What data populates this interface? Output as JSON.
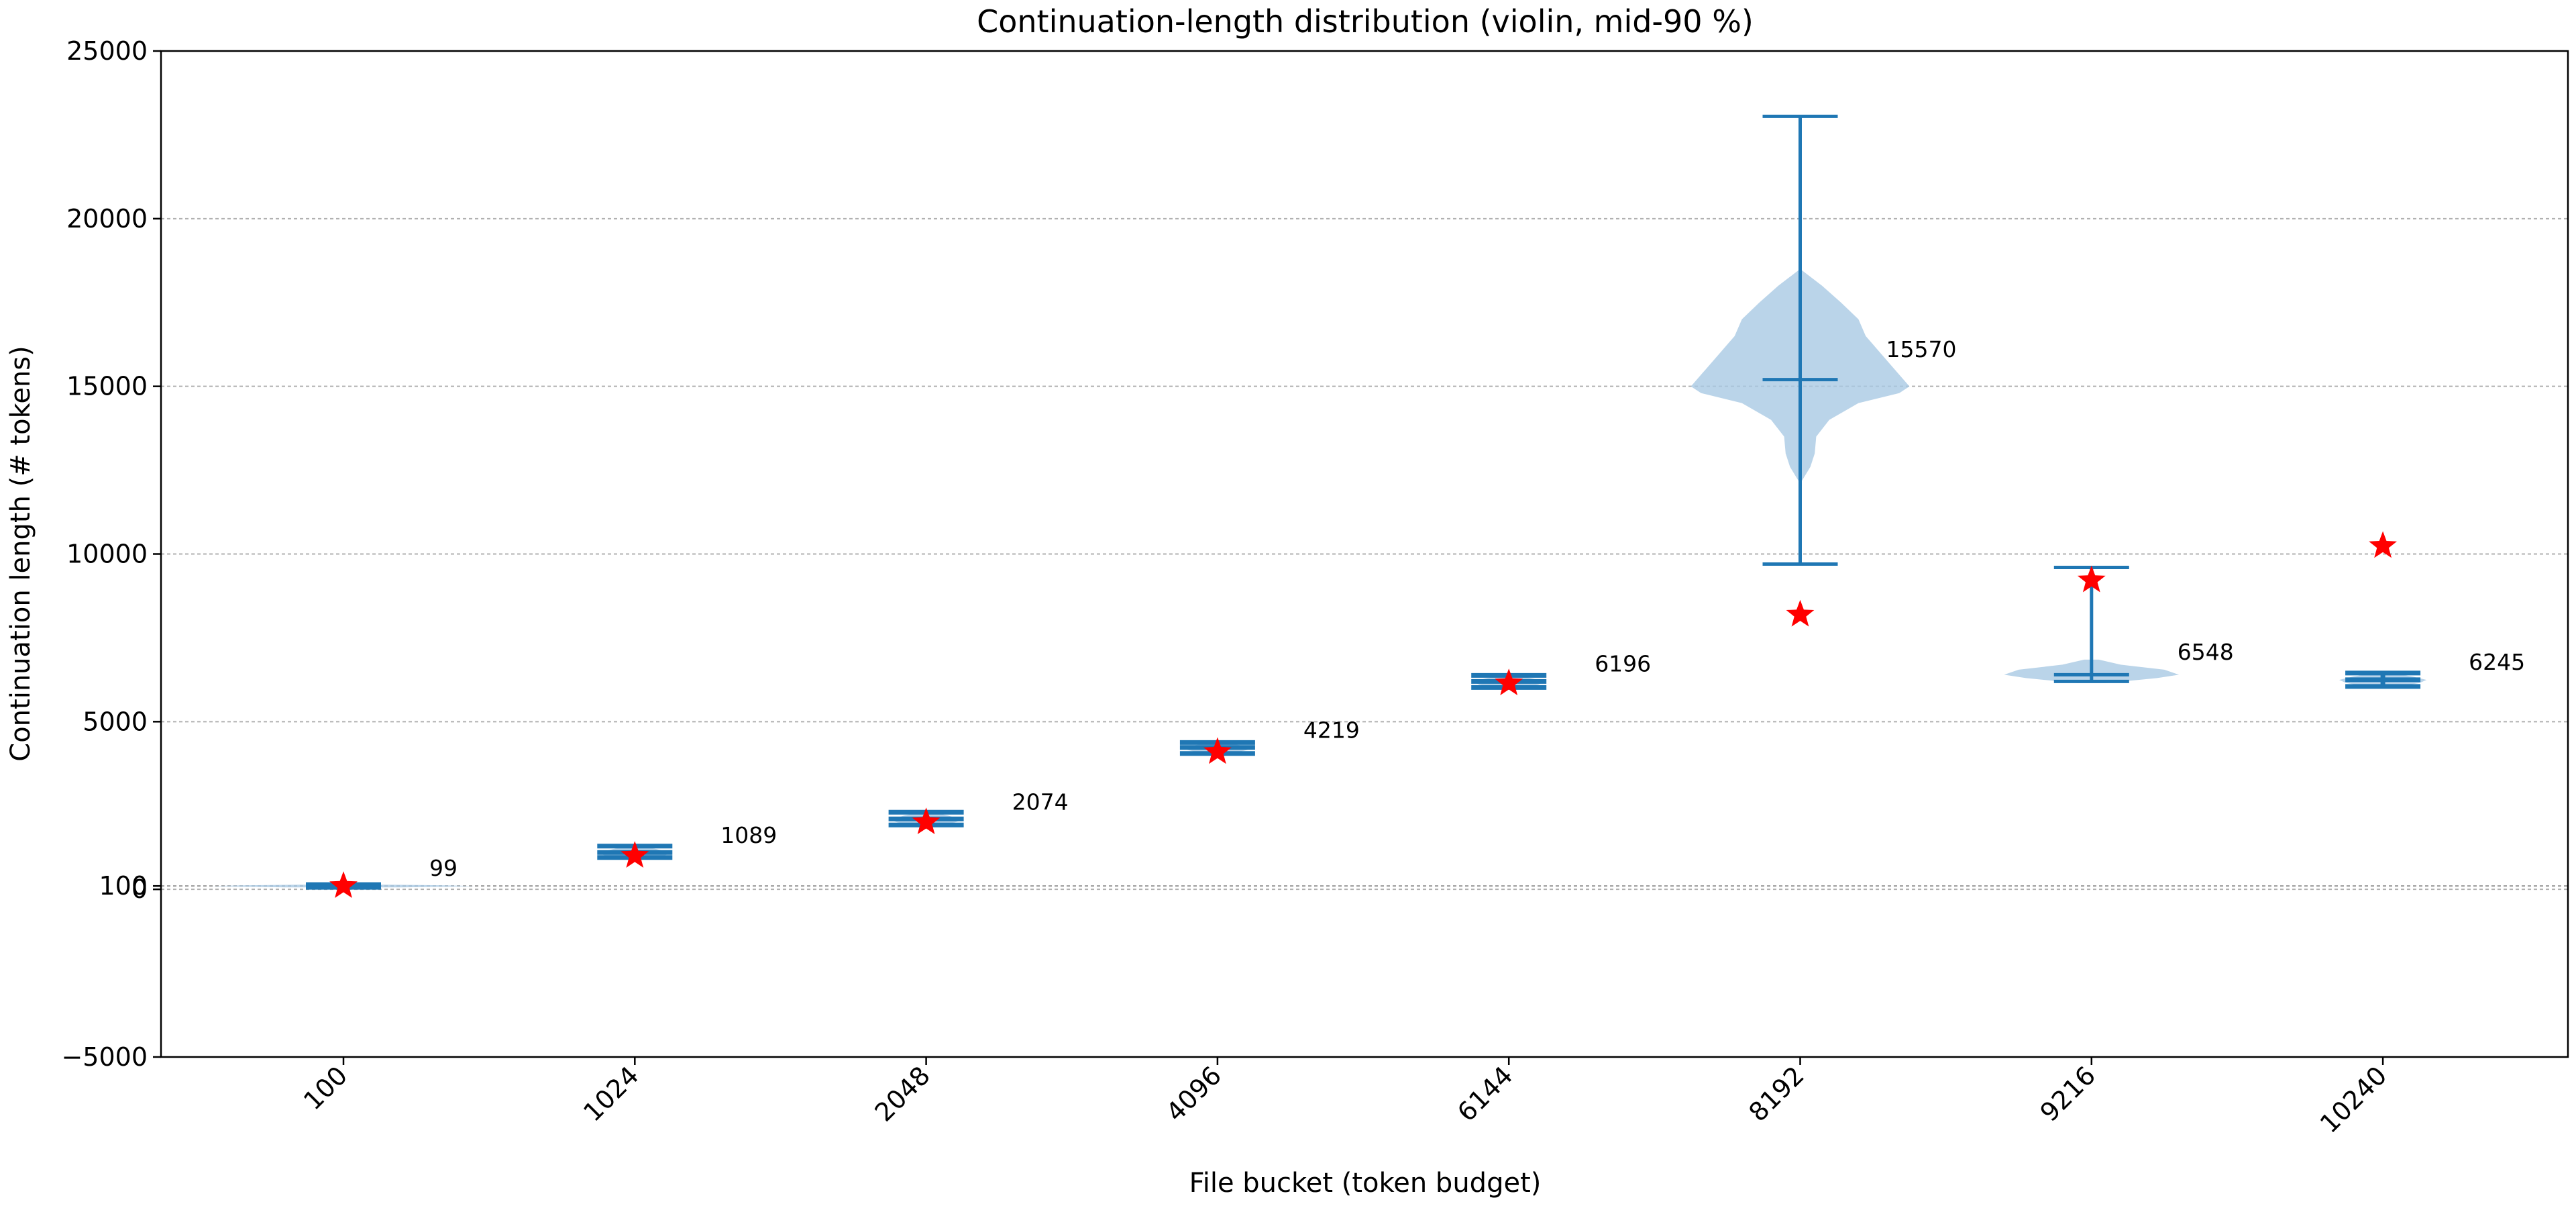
{
  "chart_data": {
    "type": "violin",
    "title": "Continuation-length distribution (violin, mid-90 %)",
    "xlabel": "File bucket (token budget)",
    "ylabel": "Continuation length (# tokens)",
    "ylim": [
      -5000,
      25000
    ],
    "yticks": [
      -5000,
      0,
      5000,
      10000,
      15000,
      20000,
      25000
    ],
    "ytick_labels": [
      "−5000",
      "0",
      "5000",
      "10000",
      "15000",
      "20000",
      "25000"
    ],
    "extra_ytick": {
      "value": 100,
      "label": "100"
    },
    "reference_line": 100,
    "categories": [
      "100",
      "1024",
      "2048",
      "4096",
      "6144",
      "8192",
      "9216",
      "10240"
    ],
    "grid": "y-dashed",
    "colors": {
      "violin_fill": "#a9c9e3",
      "whisker": "#1f77b4",
      "star": "#ff0000"
    },
    "violins": [
      {
        "category": "100",
        "min": 60,
        "max": 140,
        "mean": 100,
        "median": 99,
        "star": 99,
        "shape": [
          [
            60,
            0.4
          ],
          [
            80,
            0.7
          ],
          [
            100,
            0.9
          ],
          [
            120,
            0.7
          ],
          [
            140,
            0.3
          ]
        ]
      },
      {
        "category": "1024",
        "min": 950,
        "max": 1290,
        "mean": 1100,
        "median": 1089,
        "star": 1000,
        "shape": [
          [
            950,
            0.1
          ],
          [
            1000,
            0.2
          ],
          [
            1089,
            0.25
          ],
          [
            1200,
            0.15
          ],
          [
            1290,
            0.05
          ]
        ]
      },
      {
        "category": "2048",
        "min": 1920,
        "max": 2300,
        "mean": 2100,
        "median": 2074,
        "star": 2000,
        "shape": [
          [
            1920,
            0.1
          ],
          [
            2000,
            0.2
          ],
          [
            2074,
            0.25
          ],
          [
            2200,
            0.15
          ],
          [
            2300,
            0.05
          ]
        ]
      },
      {
        "category": "4096",
        "min": 4050,
        "max": 4380,
        "mean": 4230,
        "median": 4219,
        "star": 4096,
        "shape": [
          [
            4050,
            0.1
          ],
          [
            4150,
            0.2
          ],
          [
            4219,
            0.25
          ],
          [
            4300,
            0.15
          ],
          [
            4380,
            0.05
          ]
        ]
      },
      {
        "category": "6144",
        "min": 6020,
        "max": 6380,
        "mean": 6200,
        "median": 6196,
        "star": 6144,
        "shape": [
          [
            6020,
            0.1
          ],
          [
            6100,
            0.2
          ],
          [
            6196,
            0.25
          ],
          [
            6300,
            0.15
          ],
          [
            6380,
            0.05
          ]
        ]
      },
      {
        "category": "8192",
        "min": 9700,
        "max": 23050,
        "mean": 15200,
        "median": 15570,
        "star": 8192,
        "shape": [
          [
            12100,
            0
          ],
          [
            12600,
            0.07
          ],
          [
            13000,
            0.1
          ],
          [
            13500,
            0.11
          ],
          [
            14000,
            0.2
          ],
          [
            14500,
            0.4
          ],
          [
            14800,
            0.68
          ],
          [
            15000,
            0.75
          ],
          [
            15500,
            0.65
          ],
          [
            16000,
            0.55
          ],
          [
            16500,
            0.45
          ],
          [
            17000,
            0.4
          ],
          [
            17500,
            0.28
          ],
          [
            18000,
            0.15
          ],
          [
            18500,
            0
          ]
        ]
      },
      {
        "category": "9216",
        "min": 6200,
        "max": 9600,
        "mean": 6400,
        "median": 6548,
        "star": 9216,
        "shape": [
          [
            6150,
            0.1
          ],
          [
            6300,
            0.45
          ],
          [
            6400,
            0.6
          ],
          [
            6550,
            0.5
          ],
          [
            6700,
            0.2
          ],
          [
            6850,
            0.05
          ]
        ]
      },
      {
        "category": "10240",
        "min": 6050,
        "max": 6450,
        "mean": 6250,
        "median": 6245,
        "star": 10240,
        "shape": [
          [
            6050,
            0.1
          ],
          [
            6150,
            0.25
          ],
          [
            6245,
            0.3
          ],
          [
            6350,
            0.2
          ],
          [
            6450,
            0.05
          ]
        ]
      }
    ]
  }
}
